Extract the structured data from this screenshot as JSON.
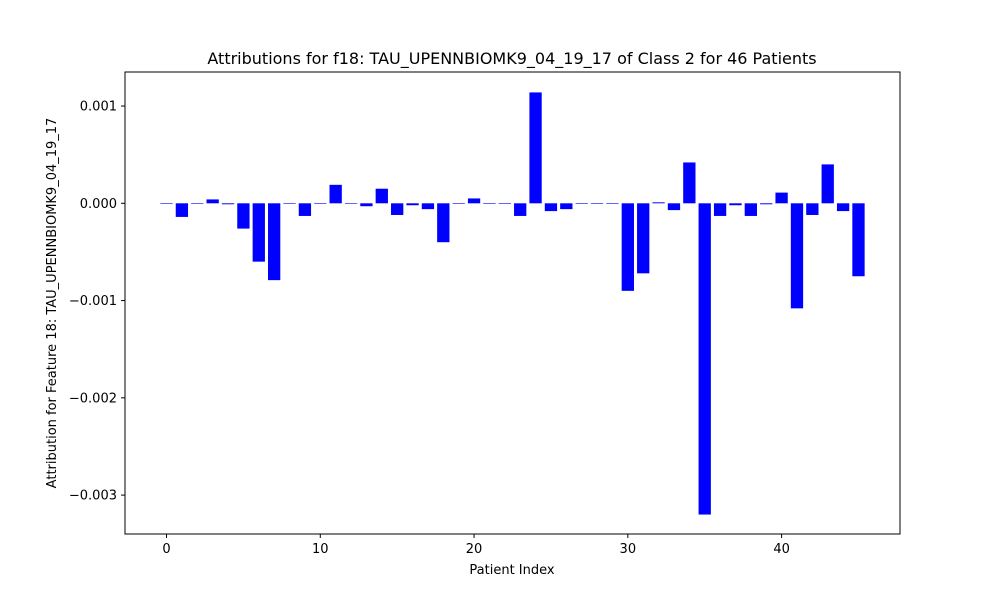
{
  "chart_data": {
    "type": "bar",
    "title": "Attributions for f18: TAU_UPENNBIOMK9_04_19_17 of Class 2 for 46 Patients",
    "xlabel": "Patient Index",
    "ylabel": "Attribution for Feature 18: TAU_UPENNBIOMK9_04_19_17",
    "xlim": [
      -2.7,
      47.7
    ],
    "ylim": [
      -0.0034,
      0.00135
    ],
    "xticks": [
      0,
      10,
      20,
      30,
      40
    ],
    "xtick_labels": [
      "0",
      "10",
      "20",
      "30",
      "40"
    ],
    "yticks": [
      -0.003,
      -0.002,
      -0.001,
      0.0,
      0.001
    ],
    "ytick_labels": [
      "−0.003",
      "−0.002",
      "−0.001",
      "0.000",
      "0.001"
    ],
    "grid": false,
    "bar_color": "#0000ff",
    "x": [
      0,
      1,
      2,
      3,
      4,
      5,
      6,
      7,
      8,
      9,
      10,
      11,
      12,
      13,
      14,
      15,
      16,
      17,
      18,
      19,
      20,
      21,
      22,
      23,
      24,
      25,
      26,
      27,
      28,
      29,
      30,
      31,
      32,
      33,
      34,
      35,
      36,
      37,
      38,
      39,
      40,
      41,
      42,
      43,
      44,
      45
    ],
    "values": [
      0,
      -0.00014,
      0,
      4e-05,
      -1e-05,
      -0.00026,
      -0.0006,
      -0.00079,
      0,
      -0.00013,
      0,
      0.00019,
      0,
      -3e-05,
      0.00015,
      -0.00012,
      -2e-05,
      -6e-05,
      -0.0004,
      0,
      5e-05,
      0,
      0,
      -0.00013,
      0.00114,
      -8e-05,
      -6e-05,
      0,
      0,
      0,
      -0.0009,
      -0.00072,
      1e-05,
      -7e-05,
      0.00042,
      -0.0032,
      -0.00013,
      -2e-05,
      -0.00013,
      -1e-05,
      0.00011,
      -0.00108,
      -0.00012,
      0.0004,
      -8e-05,
      -0.00075
    ]
  }
}
